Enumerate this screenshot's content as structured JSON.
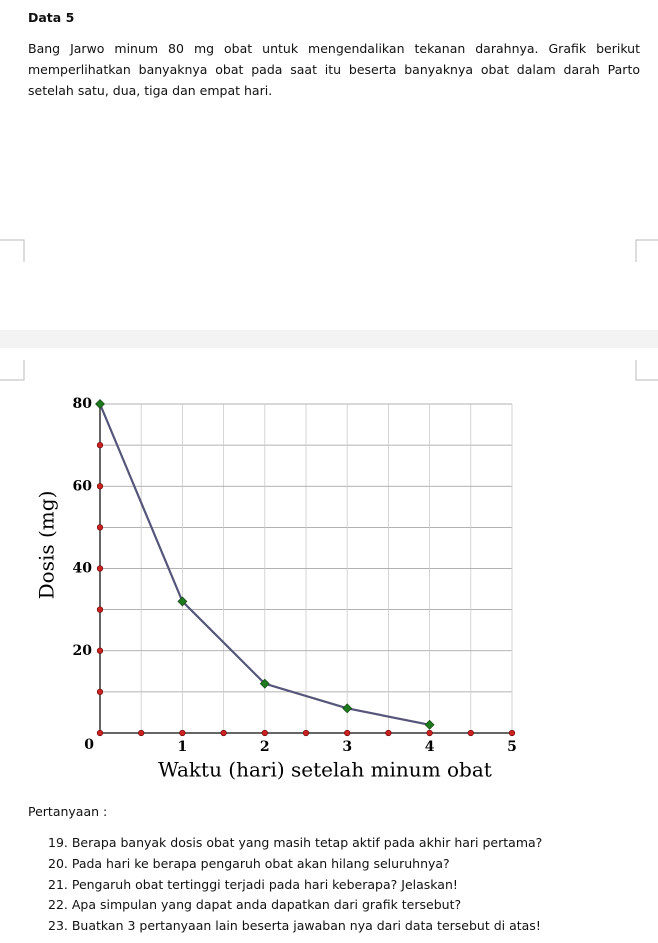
{
  "document": {
    "title": "Data 5",
    "paragraph": "Bang Jarwo minum 80 mg obat untuk mengendalikan tekanan darahnya. Grafik berikut memperlihatkan banyaknya obat pada saat itu beserta banyaknya obat dalam darah Parto setelah satu, dua, tiga dan empat hari.",
    "questions_heading": "Pertanyaan :",
    "questions": [
      "19. Berapa banyak dosis obat yang masih tetap aktif pada akhir hari pertama?",
      "20. Pada hari ke berapa pengaruh obat akan hilang seluruhnya?",
      "21. Pengaruh obat tertinggi terjadi pada hari keberapa? Jelaskan!",
      "22. Apa simpulan yang dapat anda dapatkan dari grafik tersebut?",
      "23. Buatkan 3 pertanyaan lain beserta jawaban nya dari data tersebut di atas!"
    ]
  },
  "chart_data": {
    "type": "line",
    "x_label": "Waktu (hari) setelah minum obat",
    "y_label": "Dosis (mg)",
    "x": [
      0,
      1,
      2,
      3,
      4
    ],
    "values": [
      80,
      32,
      12,
      6,
      2
    ],
    "color": "#55557a",
    "marker_color": "#1f7a1f",
    "tick_dot_color": "#cc2222",
    "xlim": [
      0,
      5
    ],
    "ylim": [
      0,
      80
    ],
    "xticks": [
      1,
      2,
      3,
      4,
      5
    ],
    "yticks": [
      0,
      20,
      40,
      60,
      80
    ],
    "minor_xticks": [
      0.5,
      1.5,
      2.5,
      3.5,
      4.5
    ],
    "minor_yticks": [
      10,
      30,
      50,
      70
    ],
    "grid": true
  }
}
